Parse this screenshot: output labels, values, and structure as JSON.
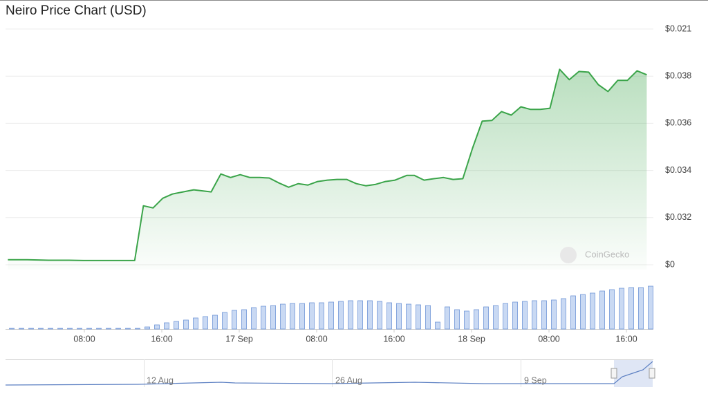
{
  "chart_data": {
    "type": "line",
    "title": "Neiro Price Chart (USD)",
    "watermark": "CoinGecko",
    "color": "#3aa449",
    "x": [
      0.1,
      2.1,
      4.3,
      6.4,
      7.9,
      9.3,
      11.4,
      13.2,
      14.1,
      15.1,
      16.1,
      17.1,
      18.2,
      19.3,
      21.1,
      22.1,
      23.1,
      24.1,
      25.1,
      26.1,
      27.1,
      28.1,
      29.1,
      30.1,
      31.1,
      32.1,
      33.1,
      34.1,
      35.1,
      36.1,
      37.1,
      38.1,
      39.1,
      40.1,
      41.3,
      42.1,
      43.1,
      44.1,
      45.1,
      46.1,
      47.1,
      48.1,
      49.1,
      50.1,
      51.1,
      52.1,
      53.1,
      54.1,
      55.1,
      56.1,
      57.1,
      58.1,
      59.1,
      60.1,
      61.1,
      62.1,
      63.1,
      64.1,
      65.1,
      66.1
    ],
    "values": [
      0.03021,
      0.03021,
      0.03019,
      0.03019,
      0.03018,
      0.03018,
      0.03018,
      0.03018,
      0.0325,
      0.03241,
      0.03282,
      0.033,
      0.03309,
      0.03318,
      0.03309,
      0.03385,
      0.0337,
      0.03382,
      0.0337,
      0.0337,
      0.03368,
      0.03347,
      0.03329,
      0.03344,
      0.03338,
      0.03353,
      0.03359,
      0.03362,
      0.03362,
      0.03344,
      0.03335,
      0.03341,
      0.03353,
      0.03359,
      0.03379,
      0.03379,
      0.03359,
      0.03365,
      0.0337,
      0.03362,
      0.03365,
      0.03494,
      0.03609,
      0.03612,
      0.0365,
      0.03635,
      0.0367,
      0.03659,
      0.03659,
      0.03664,
      0.03829,
      0.03785,
      0.0382,
      0.03817,
      0.03764,
      0.03735,
      0.03782,
      0.03782,
      0.03823,
      0.03806
    ],
    "xlim": [
      0,
      66.5
    ],
    "xticks": [
      {
        "value": 8,
        "label": "08:00"
      },
      {
        "value": 16,
        "label": "16:00"
      },
      {
        "value": 24,
        "label": "17 Sep"
      },
      {
        "value": 32,
        "label": "08:00"
      },
      {
        "value": 40,
        "label": "16:00"
      },
      {
        "value": 48,
        "label": "18 Sep"
      },
      {
        "value": 56,
        "label": "08:00"
      },
      {
        "value": 64,
        "label": "16:00"
      }
    ],
    "ylim": [
      0.03,
      0.04
    ],
    "ylim_labels": [
      "$0",
      "$0.021"
    ],
    "yticks": [
      {
        "value": 0.032,
        "label": "$0.032"
      },
      {
        "value": 0.034,
        "label": "$0.034"
      },
      {
        "value": 0.036,
        "label": "$0.036"
      },
      {
        "value": 0.038,
        "label": "$0.038"
      }
    ],
    "grid": true,
    "volume": {
      "type": "bar",
      "color": "#c9d9f3",
      "edge": "#6f94d6",
      "ylim": [
        0,
        70
      ],
      "x": [
        0,
        1,
        2,
        3,
        4,
        5,
        6,
        7,
        8,
        9,
        10,
        11,
        12,
        13,
        14,
        15,
        16,
        17,
        18,
        19,
        20,
        21,
        22,
        23,
        24,
        25,
        26,
        27,
        28,
        29,
        30,
        31,
        32,
        33,
        34,
        35,
        36,
        37,
        38,
        39,
        40,
        41,
        42,
        43,
        44,
        45,
        46,
        47,
        48,
        49,
        50,
        51,
        52,
        53,
        54,
        55,
        56,
        57,
        58,
        59,
        60,
        61,
        62,
        63,
        64,
        65,
        66
      ],
      "values": [
        1,
        1,
        1,
        1,
        1,
        1,
        1,
        1,
        1,
        1,
        1,
        1,
        1,
        1,
        3,
        6,
        9,
        11,
        13,
        16,
        18,
        20,
        24,
        27,
        28,
        31,
        33,
        34,
        36,
        37,
        37,
        38,
        38,
        39,
        40,
        41,
        41,
        41,
        40,
        38,
        37,
        36,
        35,
        34,
        10,
        32,
        28,
        26,
        28,
        32,
        34,
        37,
        39,
        40,
        41,
        41,
        42,
        44,
        48,
        50,
        52,
        55,
        57,
        59,
        60,
        60,
        62
      ]
    },
    "navigator_labels": [
      "12 Aug",
      "26 Aug",
      "9 Sep"
    ]
  }
}
